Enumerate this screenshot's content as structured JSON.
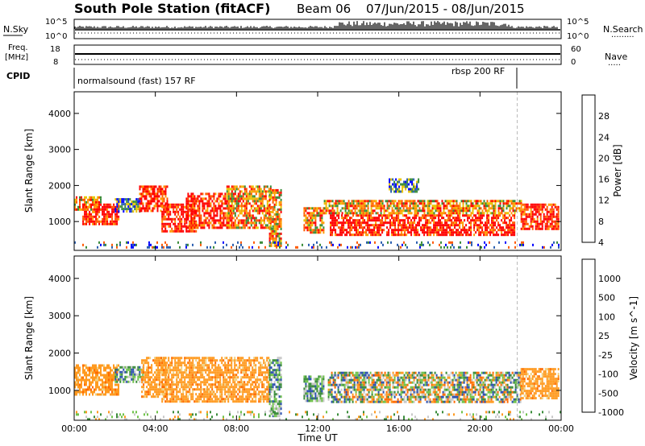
{
  "header": {
    "station": "South Pole Station (fitACF)",
    "beam": "Beam 06",
    "date_range": "07/Jun/2015 - 08/Jun/2015"
  },
  "panels": {
    "nsky": {
      "label": "N.Sky",
      "ticks": [
        "10^5",
        "10^0"
      ],
      "right_label": "N.Search",
      "right_ticks": [
        "10^5",
        "10^0"
      ]
    },
    "freq": {
      "label_line1": "Freq.",
      "label_line2": "[MHz]",
      "ticks": [
        "18",
        "8"
      ],
      "right_label": "Nave",
      "right_ticks": [
        "60",
        "0"
      ]
    },
    "cpid": {
      "label": "CPID",
      "segments": [
        "normalsound (fast) 157 RF",
        "rbsp 200 RF"
      ]
    }
  },
  "chart_data": [
    {
      "type": "heatmap",
      "title": "",
      "xlabel": "",
      "ylabel": "Slant Range [km]",
      "x_ticks": [
        "00:00",
        "04:00",
        "08:00",
        "12:00",
        "16:00",
        "20:00",
        "00:00"
      ],
      "y_ticks": [
        "1000",
        "2000",
        "3000",
        "4000"
      ],
      "ylim": [
        200,
        4600
      ],
      "colorbar": {
        "label": "Power [dB]",
        "ticks": [
          "28",
          "24",
          "20",
          "16",
          "12",
          "8",
          "4"
        ],
        "colors": [
          "#ff0000",
          "#ff5a00",
          "#ff9a00",
          "#e8c400",
          "#3a8c3a",
          "#2b5fb0",
          "#0000ff"
        ]
      },
      "regions": [
        {
          "t": [
            0.0,
            1.3
          ],
          "r": [
            1300,
            1700
          ],
          "level": "mid"
        },
        {
          "t": [
            0.4,
            2.2
          ],
          "r": [
            900,
            1500
          ],
          "level": "high"
        },
        {
          "t": [
            2.0,
            3.2
          ],
          "r": [
            1300,
            1650
          ],
          "level": "low"
        },
        {
          "t": [
            3.2,
            4.6
          ],
          "r": [
            1300,
            2000
          ],
          "level": "high"
        },
        {
          "t": [
            4.3,
            6.0
          ],
          "r": [
            700,
            1500
          ],
          "level": "high"
        },
        {
          "t": [
            5.5,
            7.8
          ],
          "r": [
            800,
            1800
          ],
          "level": "high"
        },
        {
          "t": [
            7.5,
            9.7
          ],
          "r": [
            800,
            2000
          ],
          "level": "mid"
        },
        {
          "t": [
            9.6,
            10.2
          ],
          "r": [
            300,
            1900
          ],
          "level": "mid"
        },
        {
          "t": [
            11.3,
            12.3
          ],
          "r": [
            700,
            1400
          ],
          "level": "mid"
        },
        {
          "t": [
            12.6,
            21.7
          ],
          "r": [
            600,
            1200
          ],
          "level": "high"
        },
        {
          "t": [
            12.3,
            22.0
          ],
          "r": [
            1200,
            1600
          ],
          "level": "mid"
        },
        {
          "t": [
            22.0,
            23.9
          ],
          "r": [
            800,
            1500
          ],
          "level": "high"
        },
        {
          "t": [
            15.5,
            17.0
          ],
          "r": [
            1800,
            2200
          ],
          "level": "low"
        },
        {
          "t": [
            0.0,
            24.0
          ],
          "r": [
            250,
            450
          ],
          "level": "sparse"
        }
      ]
    },
    {
      "type": "heatmap",
      "title": "",
      "xlabel": "Time UT",
      "ylabel": "Slant Range [km]",
      "x_ticks": [
        "00:00",
        "04:00",
        "08:00",
        "12:00",
        "16:00",
        "20:00",
        "00:00"
      ],
      "y_ticks": [
        "1000",
        "2000",
        "3000",
        "4000"
      ],
      "ylim": [
        200,
        4600
      ],
      "colorbar": {
        "label": "Velocity [m s^-1]",
        "ticks": [
          "1000",
          "500",
          "100",
          "25",
          "-25",
          "-100",
          "-500",
          "-1000"
        ],
        "colors": [
          "#2b4fb0",
          "#3a8c3a",
          "#6fc24a",
          "#c8c8c8",
          "#f0d080",
          "#ff9a20",
          "#ff6a00",
          "#ff0000"
        ]
      },
      "regions": [
        {
          "t": [
            0.0,
            2.2
          ],
          "r": [
            900,
            1700
          ],
          "level": "neg"
        },
        {
          "t": [
            2.0,
            3.4
          ],
          "r": [
            1200,
            1650
          ],
          "level": "pos"
        },
        {
          "t": [
            3.3,
            4.5
          ],
          "r": [
            800,
            1900
          ],
          "level": "neg"
        },
        {
          "t": [
            4.3,
            9.6
          ],
          "r": [
            700,
            1900
          ],
          "level": "neg"
        },
        {
          "t": [
            9.6,
            10.2
          ],
          "r": [
            300,
            1900
          ],
          "level": "pos"
        },
        {
          "t": [
            11.3,
            12.3
          ],
          "r": [
            700,
            1400
          ],
          "level": "pos"
        },
        {
          "t": [
            12.5,
            22.0
          ],
          "r": [
            700,
            1500
          ],
          "level": "mixed"
        },
        {
          "t": [
            22.0,
            23.9
          ],
          "r": [
            800,
            1600
          ],
          "level": "neg"
        },
        {
          "t": [
            0.0,
            24.0
          ],
          "r": [
            250,
            450
          ],
          "level": "sparse"
        }
      ]
    }
  ],
  "annotation_marker_time": "21:50"
}
